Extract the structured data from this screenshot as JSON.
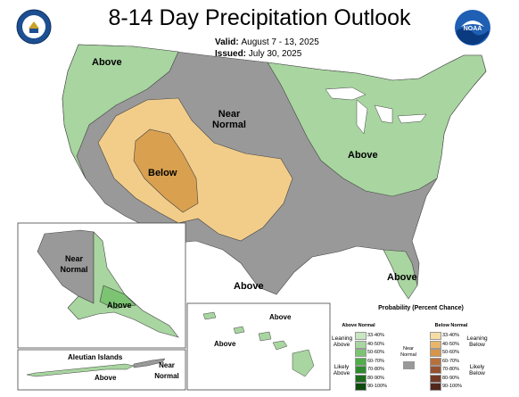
{
  "header": {
    "title": "8-14 Day Precipitation Outlook",
    "valid_label": "Valid:",
    "valid_value": "August 7 - 13, 2025",
    "issued_label": "Issued:",
    "issued_value": "July 30, 2025",
    "left_logo_icon": "doc-seal-icon",
    "right_logo_icon": "noaa-logo-icon",
    "right_logo_text": "NOAA"
  },
  "map_labels": {
    "above_nw": "Above",
    "near_normal_central": "Near Normal",
    "below_sw": "Below",
    "above_east": "Above",
    "above_texas": "Above",
    "above_florida": "Above",
    "alaska_near_normal": "Near Normal",
    "alaska_above": "Above",
    "hawaii_above_1": "Above",
    "hawaii_above_2": "Above",
    "aleutian_title": "Aleutian Islands",
    "aleutian_above": "Above",
    "aleutian_near_normal": "Near Normal"
  },
  "colors": {
    "above_light": "#a8d5a0",
    "near_normal": "#999999",
    "below_light": "#f2cd8a",
    "below_medium": "#d9a050",
    "water": "#ffffff"
  },
  "legend": {
    "title": "Probability (Percent Chance)",
    "above_header": "Above Normal",
    "below_header": "Below Normal",
    "near_label": "Near Normal",
    "leaning_above": "Leaning Above",
    "likely_above": "Likely Above",
    "leaning_below": "Leaning Below",
    "likely_below": "Likely Below",
    "above_bins": [
      {
        "label": "33-40%",
        "color": "#c8e6c0"
      },
      {
        "label": "40-50%",
        "color": "#a8d5a0"
      },
      {
        "label": "50-60%",
        "color": "#7cc472"
      },
      {
        "label": "60-70%",
        "color": "#4fae48"
      },
      {
        "label": "70-80%",
        "color": "#2e8b2e"
      },
      {
        "label": "80-90%",
        "color": "#1d6b1d"
      },
      {
        "label": "90-100%",
        "color": "#0f4a0f"
      }
    ],
    "below_bins": [
      {
        "label": "33-40%",
        "color": "#f5dca5"
      },
      {
        "label": "40-50%",
        "color": "#e8b56a"
      },
      {
        "label": "50-60%",
        "color": "#d6954a"
      },
      {
        "label": "60-70%",
        "color": "#b8703a"
      },
      {
        "label": "70-80%",
        "color": "#965230"
      },
      {
        "label": "80-90%",
        "color": "#733a25"
      },
      {
        "label": "90-100%",
        "color": "#52261a"
      }
    ],
    "near_color": "#999999"
  }
}
